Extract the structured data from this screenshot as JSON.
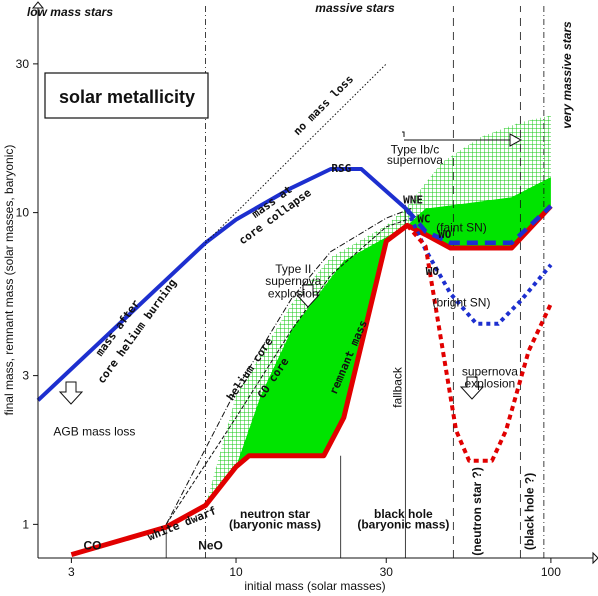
{
  "chart_data": {
    "type": "line",
    "title": "solar metallicity",
    "xlabel": "initial mass (solar masses)",
    "ylabel": "final mass, remnant mass (solar masses, baryonic)",
    "xscale": "log",
    "yscale": "log",
    "xlim": [
      2.35,
      115
    ],
    "ylim": [
      0.78,
      46
    ],
    "xticks": [
      3,
      10,
      30,
      100
    ],
    "yticks": [
      1,
      3,
      10,
      30
    ],
    "x_tick_labels": [
      "3",
      "10",
      "30",
      "100"
    ],
    "y_tick_labels": [
      "1",
      "3",
      "10",
      "30"
    ],
    "top_labels": [
      "low mass stars",
      "massive stars",
      "very massive stars"
    ],
    "region_labels": [
      {
        "text": "CO",
        "x": 3.5,
        "y": 0.83
      },
      {
        "text": "NeO",
        "x": 8.3,
        "y": 0.83
      },
      {
        "text": "neutron star",
        "x": 13.3,
        "y": 1.05
      },
      {
        "text": "(baryonic mass)",
        "x": 13.3,
        "y": 0.97
      },
      {
        "text": "black hole",
        "x": 34,
        "y": 1.05
      },
      {
        "text": "(baryonic mass)",
        "x": 34,
        "y": 0.97
      },
      {
        "text": "(neutron star ?)",
        "x": 60,
        "y": 1.1,
        "rot": 270
      },
      {
        "text": "(black hole ?)",
        "x": 88,
        "y": 1.1,
        "rot": 270
      }
    ],
    "annotations": [
      {
        "text": "Type Ib/c",
        "x": 37,
        "y": 15.5
      },
      {
        "text": "supernova",
        "x": 37,
        "y": 14.3
      },
      {
        "text": "Type II",
        "x": 15.2,
        "y": 6.4
      },
      {
        "text": "supernova",
        "x": 15.2,
        "y": 5.85
      },
      {
        "text": "explosion",
        "x": 15.2,
        "y": 5.35
      },
      {
        "text": "AGB mass loss",
        "x": 3.55,
        "y": 1.93
      },
      {
        "text": "supernova",
        "x": 64,
        "y": 3.0
      },
      {
        "text": "explosion",
        "x": 64,
        "y": 2.75
      },
      {
        "text": "(faint SN)",
        "x": 52,
        "y": 8.7
      },
      {
        "text": "(bright SN)",
        "x": 52,
        "y": 5.0
      },
      {
        "text": "fallback",
        "x": 33.5,
        "y": 2.75,
        "rot": 270
      }
    ],
    "curve_labels": [
      {
        "text": "mass after",
        "x": 4.3,
        "y": 4.2,
        "rot": -54,
        "color": "#1d2fcf"
      },
      {
        "text": "core helium burning",
        "x": 4.95,
        "y": 4.1,
        "rot": -54,
        "color": "#1d2fcf"
      },
      {
        "text": "mass at",
        "x": 13.2,
        "y": 10.6,
        "rot": -36,
        "color": "#1d2fcf"
      },
      {
        "text": "core collapse",
        "x": 13.5,
        "y": 9.5,
        "rot": -36,
        "color": "#1d2fcf"
      },
      {
        "text": "RSG",
        "x": 21.6,
        "y": 13.5,
        "rot": 0,
        "color": "#1d2fcf"
      },
      {
        "text": "WNE",
        "x": 36.5,
        "y": 10.7,
        "rot": 0,
        "color": "#1d2fcf"
      },
      {
        "text": "WC",
        "x": 39.5,
        "y": 9.3,
        "rot": 0,
        "color": "#1d2fcf"
      },
      {
        "text": "WO",
        "x": 46.0,
        "y": 8.3,
        "rot": 0,
        "color": "#1d2fcf"
      },
      {
        "text": "WO",
        "x": 42.0,
        "y": 6.3,
        "rot": 0,
        "color": "#1d2fcf"
      },
      {
        "text": "no mass loss",
        "x": 19.3,
        "y": 21.7,
        "rot": -45,
        "color": "#111111"
      },
      {
        "text": "helium core",
        "x": 11.3,
        "y": 3.1,
        "rot": -56,
        "color": "#111111"
      },
      {
        "text": "CO core",
        "x": 13.4,
        "y": 2.9,
        "rot": -56,
        "color": "#111111"
      },
      {
        "text": "white dwarf",
        "x": 6.8,
        "y": 0.98,
        "rot": -22,
        "color": "#111111"
      },
      {
        "text": "remnant mass",
        "x": 23.3,
        "y": 3.4,
        "rot": -67,
        "color": "#d40000"
      }
    ],
    "series": [
      {
        "name": "mass after core helium burning",
        "color": "#1d2fcf",
        "values": [
          [
            2.35,
            2.5
          ],
          [
            8,
            8
          ]
        ]
      },
      {
        "name": "mass at core collapse",
        "color": "#1d2fcf",
        "values": [
          [
            8,
            8
          ],
          [
            10,
            9.5
          ],
          [
            15,
            12
          ],
          [
            20,
            13.8
          ],
          [
            25,
            13.8
          ],
          [
            35,
            10.2
          ]
        ]
      },
      {
        "name": "remnant mass",
        "color": "#e10000",
        "values": [
          [
            3,
            0.8
          ],
          [
            6,
            0.98
          ],
          [
            8,
            1.15
          ],
          [
            10,
            1.53
          ],
          [
            11,
            1.66
          ],
          [
            19,
            1.66
          ],
          [
            22,
            2.2
          ],
          [
            30,
            8.1
          ],
          [
            35,
            9.1
          ],
          [
            40,
            8.5
          ],
          [
            48,
            7.7
          ],
          [
            75,
            7.7
          ],
          [
            100,
            10.5
          ]
        ]
      },
      {
        "name": "no mass loss",
        "color": "#111111",
        "values": [
          [
            8,
            8
          ],
          [
            30,
            30
          ]
        ]
      },
      {
        "name": "helium core",
        "color": "#111111",
        "values": [
          [
            6,
            1.0
          ],
          [
            10,
            2.7
          ],
          [
            15,
            5.3
          ],
          [
            20,
            7.5
          ],
          [
            30,
            9.6
          ],
          [
            36,
            10.3
          ]
        ]
      },
      {
        "name": "CO core",
        "color": "#111111",
        "values": [
          [
            6,
            1.0
          ],
          [
            10,
            2.2
          ],
          [
            15,
            4.2
          ],
          [
            20,
            6.3
          ],
          [
            30,
            9.0
          ],
          [
            35,
            9.5
          ]
        ]
      },
      {
        "name": "WO (faint SN)",
        "color": "#1d2fcf",
        "values": [
          [
            35,
            10.2
          ],
          [
            40,
            8.7
          ],
          [
            48,
            8.0
          ],
          [
            75,
            8.0
          ],
          [
            100,
            10.5
          ]
        ]
      },
      {
        "name": "WO (bright SN)",
        "color": "#1d2fcf",
        "values": [
          [
            35,
            10.2
          ],
          [
            40,
            7.6
          ],
          [
            48,
            5.5
          ],
          [
            58,
            4.4
          ],
          [
            68,
            4.4
          ],
          [
            80,
            5.2
          ],
          [
            100,
            6.8
          ]
        ]
      },
      {
        "name": "supernova explosion",
        "color": "#e10000",
        "values": [
          [
            35,
            9.1
          ],
          [
            40,
            7.8
          ],
          [
            45,
            3.8
          ],
          [
            50,
            2.0
          ],
          [
            55,
            1.6
          ],
          [
            65,
            1.6
          ],
          [
            72,
            2.0
          ],
          [
            85,
            3.6
          ],
          [
            100,
            5.1
          ]
        ]
      }
    ],
    "hatch_region": {
      "color": "#14c814",
      "values": [
        [
          8,
          1.15
        ],
        [
          10,
          2.6
        ],
        [
          15,
          5.1
        ],
        [
          20,
          7.2
        ],
        [
          30,
          9.1
        ],
        [
          35,
          10.5
        ],
        [
          45,
          14.5
        ],
        [
          60,
          17.5
        ],
        [
          80,
          19.5
        ],
        [
          100,
          20.5
        ],
        [
          100,
          13
        ],
        [
          75,
          10.5
        ],
        [
          48,
          8.3
        ],
        [
          35,
          9.1
        ],
        [
          30,
          8.1
        ],
        [
          22,
          2.2
        ],
        [
          19,
          1.66
        ],
        [
          11,
          1.66
        ],
        [
          10,
          1.53
        ]
      ]
    },
    "solid_regions": [
      {
        "color": "#00e400",
        "values": [
          [
            10,
            1.53
          ],
          [
            11,
            1.66
          ],
          [
            19,
            1.66
          ],
          [
            22,
            2.2
          ],
          [
            30,
            8.1
          ],
          [
            35,
            9.1
          ],
          [
            22,
            7.0
          ],
          [
            15,
            4.2
          ],
          [
            12,
            2.6
          ]
        ]
      },
      {
        "color": "#00e400",
        "values": [
          [
            35,
            9.1
          ],
          [
            40,
            10.3
          ],
          [
            50,
            10.6
          ],
          [
            75,
            11.2
          ],
          [
            100,
            13
          ],
          [
            100,
            10.5
          ],
          [
            75,
            7.7
          ],
          [
            48,
            7.7
          ],
          [
            40,
            8.5
          ]
        ]
      }
    ],
    "vertical_lines": [
      {
        "x": 8,
        "style": "dashdot"
      },
      {
        "x": 95,
        "style": "dashdot"
      },
      {
        "x": 34.5,
        "style": "solid",
        "y_to": 10.6
      },
      {
        "x": 21.5,
        "style": "solid",
        "y_to": 1.66
      },
      {
        "x": 49,
        "style": "dashed"
      },
      {
        "x": 80,
        "style": "dashed"
      },
      {
        "x": 6,
        "style": "solid",
        "y_to": 1.0
      }
    ]
  }
}
